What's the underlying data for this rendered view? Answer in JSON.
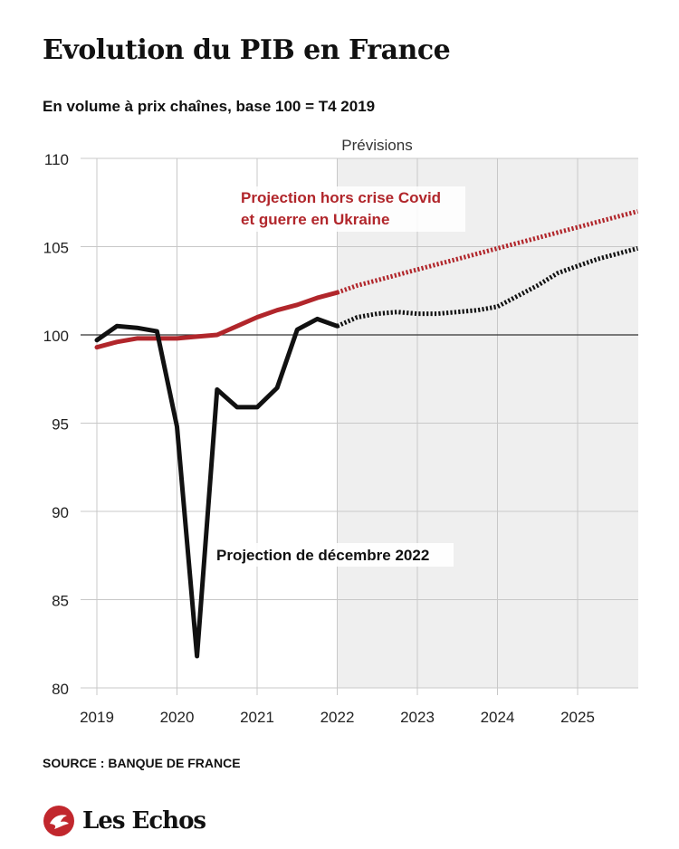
{
  "header": {
    "title": "Evolution du PIB en France",
    "subtitle": "En volume à prix chaînes, base 100 = T4 2019"
  },
  "footer": {
    "source": "SOURCE : BANQUE DE FRANCE",
    "brand": "Les Echos"
  },
  "colors": {
    "baseline_series": "#111111",
    "counterfactual_series": "#b1262b",
    "forecast_band": "#efefef",
    "grid": "#c8c8c8"
  },
  "chart_data": {
    "type": "line",
    "title": "Evolution du PIB en France",
    "subtitle": "En volume à prix chaînes, base 100 = T4 2019",
    "xlabel": "",
    "ylabel": "",
    "xlim": [
      2019,
      2025.8
    ],
    "ylim": [
      80,
      110
    ],
    "x_ticks": [
      2019,
      2020,
      2021,
      2022,
      2023,
      2024,
      2025
    ],
    "x_tick_labels": [
      "2019",
      "2020",
      "2021",
      "2022",
      "2023",
      "2024",
      "2025"
    ],
    "y_ticks": [
      80,
      85,
      90,
      95,
      100,
      105,
      110
    ],
    "y_tick_labels": [
      "80",
      "85",
      "90",
      "95",
      "100",
      "105",
      "110"
    ],
    "grid": true,
    "reference_line": 100,
    "forecast_region": {
      "label": "Prévisions",
      "from": 2022,
      "to": 2025.8
    },
    "series": [
      {
        "name": "Projection de décembre 2022",
        "color": "#111111",
        "forecast_from": 2022,
        "points": [
          [
            2019,
            99.7
          ],
          [
            2019.25,
            100.5
          ],
          [
            2019.5,
            100.4
          ],
          [
            2019.75,
            100.2
          ],
          [
            2020,
            94.8
          ],
          [
            2020.25,
            81.8
          ],
          [
            2020.5,
            96.9
          ],
          [
            2020.75,
            95.9
          ],
          [
            2021,
            95.9
          ],
          [
            2021.25,
            97.0
          ],
          [
            2021.5,
            100.3
          ],
          [
            2021.75,
            100.9
          ],
          [
            2022,
            100.5
          ],
          [
            2022.25,
            101.0
          ],
          [
            2022.5,
            101.2
          ],
          [
            2022.75,
            101.3
          ],
          [
            2023,
            101.2
          ],
          [
            2023.25,
            101.2
          ],
          [
            2023.5,
            101.3
          ],
          [
            2023.75,
            101.4
          ],
          [
            2024,
            101.6
          ],
          [
            2024.25,
            102.2
          ],
          [
            2024.5,
            102.8
          ],
          [
            2024.75,
            103.5
          ],
          [
            2025,
            103.9
          ],
          [
            2025.25,
            104.3
          ],
          [
            2025.5,
            104.6
          ],
          [
            2025.75,
            104.9
          ]
        ]
      },
      {
        "name": "Projection hors crise Covid et guerre en Ukraine",
        "name_lines": [
          "Projection hors crise Covid",
          "et guerre en Ukraine"
        ],
        "color": "#b1262b",
        "forecast_from": 2022,
        "points": [
          [
            2019,
            99.3
          ],
          [
            2019.25,
            99.6
          ],
          [
            2019.5,
            99.8
          ],
          [
            2019.75,
            99.8
          ],
          [
            2020,
            99.8
          ],
          [
            2020.25,
            99.9
          ],
          [
            2020.5,
            100.0
          ],
          [
            2020.75,
            100.5
          ],
          [
            2021,
            101.0
          ],
          [
            2021.25,
            101.4
          ],
          [
            2021.5,
            101.7
          ],
          [
            2021.75,
            102.1
          ],
          [
            2022,
            102.4
          ],
          [
            2022.25,
            102.8
          ],
          [
            2022.5,
            103.1
          ],
          [
            2022.75,
            103.4
          ],
          [
            2023,
            103.7
          ],
          [
            2023.25,
            104.0
          ],
          [
            2023.5,
            104.3
          ],
          [
            2023.75,
            104.6
          ],
          [
            2024,
            104.9
          ],
          [
            2024.25,
            105.2
          ],
          [
            2024.5,
            105.5
          ],
          [
            2024.75,
            105.8
          ],
          [
            2025,
            106.1
          ],
          [
            2025.25,
            106.4
          ],
          [
            2025.5,
            106.7
          ],
          [
            2025.75,
            107.0
          ]
        ]
      }
    ]
  }
}
